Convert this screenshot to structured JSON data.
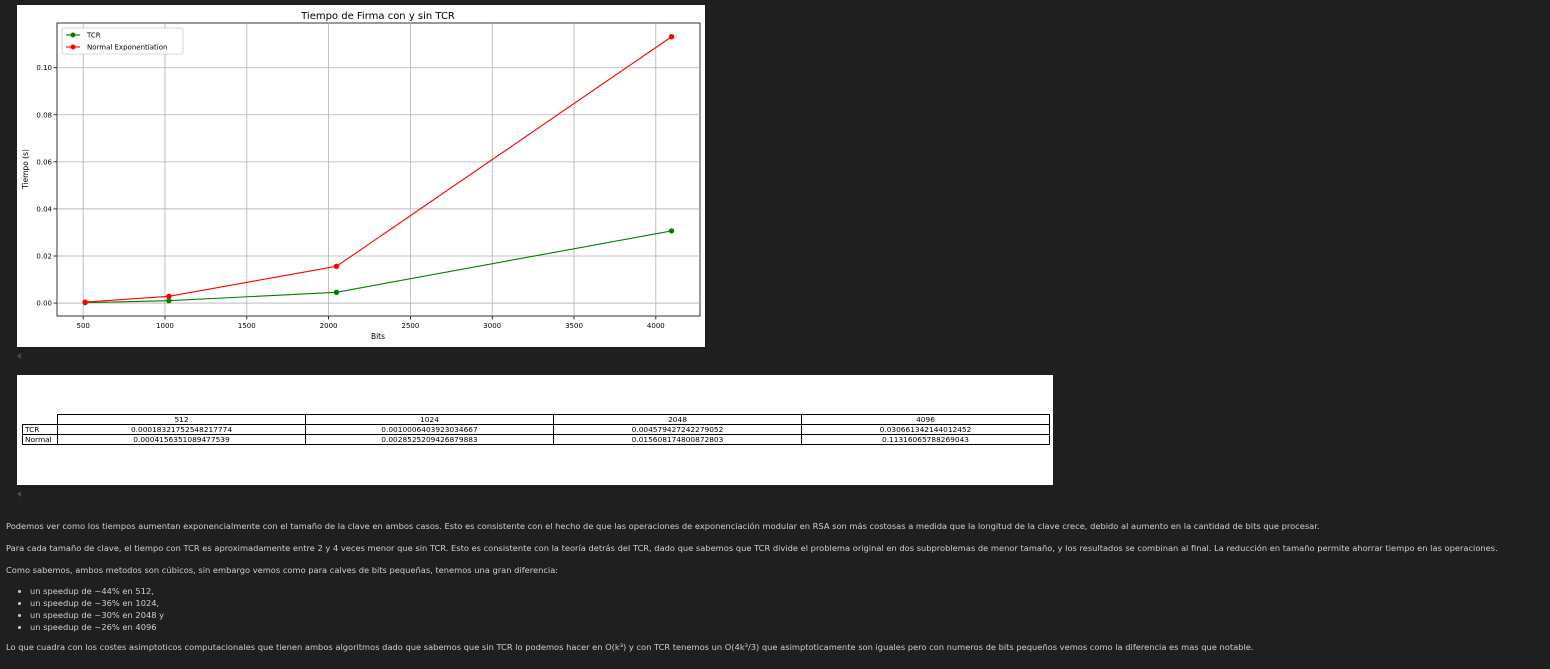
{
  "chart_data": {
    "type": "line",
    "title": "Tiempo de Firma con y sin TCR",
    "xlabel": "Bits",
    "ylabel": "Tiempo (s)",
    "x": [
      512,
      1024,
      2048,
      4096
    ],
    "xlim": [
      340,
      4270
    ],
    "ylim": [
      -0.0055,
      0.119
    ],
    "xticks": [
      500,
      1000,
      1500,
      2000,
      2500,
      3000,
      3500,
      4000
    ],
    "yticks": [
      0.0,
      0.02,
      0.04,
      0.06,
      0.08,
      0.1
    ],
    "ytick_labels": [
      "0.00",
      "0.02",
      "0.04",
      "0.06",
      "0.08",
      "0.10"
    ],
    "grid": true,
    "legend_position": "upper-left",
    "series": [
      {
        "name": "TCR",
        "color": "#008000",
        "values": [
          0.00018321752548217774,
          0.0010006403923034667,
          0.004579427242279052,
          0.030661342144012452
        ]
      },
      {
        "name": "Normal Exponentiation",
        "color": "#ff0000",
        "values": [
          0.0004156351089477539,
          0.0028525209426879883,
          0.015608174800872803,
          0.11316065788269043
        ]
      }
    ]
  },
  "table": {
    "headers": [
      "512",
      "1024",
      "2048",
      "4096"
    ],
    "rows": [
      {
        "label": "TCR",
        "values": [
          "0.00018321752548217774",
          "0.0010006403923034667",
          "0.004579427242279052",
          "0.030661342144012452"
        ]
      },
      {
        "label": "Normal",
        "values": [
          "0.0004156351089477539",
          "0.0028525209426879883",
          "0.015608174800872803",
          "0.11316065788269043"
        ]
      }
    ]
  },
  "markdown": {
    "p1": "Podemos ver como los tiempos aumentan exponencialmente con el tamaño de la clave en ambos casos. Esto es consistente con el hecho de que las operaciones de exponenciación modular en RSA son más costosas a medida que la longitud de la clave crece, debido al aumento en la cantidad de bits que procesar.",
    "p2": "Para cada tamaño de clave, el tiempo con TCR es aproximadamente entre 2 y 4 veces menor que sin TCR. Esto es consistente con la teoría detrás del TCR, dado que sabemos que TCR divide el problema original en dos subproblemas de menor tamaño, y los resultados se combinan al final. La reducción en tamaño permite ahorrar tiempo en las operaciones.",
    "p3": "Como sabemos, ambos metodos son cúbicos, sin embargo vemos como para calves de bits pequeñas, tenemos una gran diferencia:",
    "bullets": [
      "un speedup de ~44% en 512,",
      "un speedup de ~36% en 1024,",
      "un speedup de ~30% en 2048 y",
      "un speedup de ~26% en 4096"
    ],
    "p4": "Lo que cuadra con los costes asimptoticos computacionales que tienen ambos algoritmos dado que sabemos que sin TCR lo podemos hacer en O(k³) y con TCR tenemos un O(4k³/3) que asimptoticamente son iguales pero con numeros de bits pequeños vemos como la diferencia es mas que notable."
  }
}
